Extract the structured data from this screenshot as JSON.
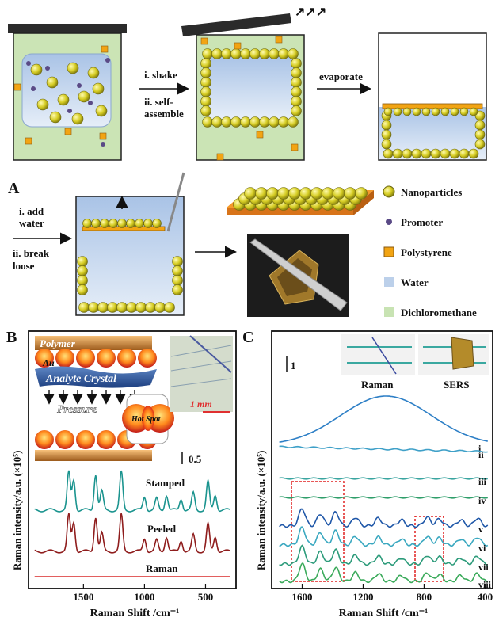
{
  "top": {
    "arrow1_line1": "i. shake",
    "arrow1_line2": "ii. self-",
    "arrow1_line3": "assemble",
    "arrow2": "evaporate"
  },
  "panelA": {
    "label": "A",
    "arrow_line1": "i. add",
    "arrow_line2": "water",
    "arrow_line3": "ii. break",
    "arrow_line4": "loose"
  },
  "legend": [
    {
      "label": "Nanoparticles",
      "color": "#d8d12a"
    },
    {
      "label": "Promoter",
      "color": "#5a4a86"
    },
    {
      "label": "Polystyrene",
      "color": "#f2a413"
    },
    {
      "label": "Water",
      "color": "#bcd0ea"
    },
    {
      "label": "Dichloromethane",
      "color": "#c8e3b3"
    }
  ],
  "panelB": {
    "label": "B",
    "polymer": "Polymer",
    "au": "Au",
    "analyte": "Analyte Crystal",
    "pressure": "Pressure",
    "hotspot": "Hot Spot",
    "scale_text": "1 mm",
    "scalebar": "0.5"
  },
  "panelC": {
    "label": "C",
    "scalebar": "1",
    "inset1": "Raman",
    "inset2": "SERS"
  },
  "chart_data": [
    {
      "type": "line",
      "ylabel": "Raman intensity/a.u. (×10⁵)",
      "xlabel": "Raman Shift /cm⁻¹",
      "xlim": [
        1950,
        250
      ],
      "x_ticks": [
        "1500",
        "1000",
        "500"
      ],
      "series": [
        {
          "name": "Stamped",
          "color": "#1b948f"
        },
        {
          "name": "Peeled",
          "color": "#8f1d1d"
        },
        {
          "name": "Raman",
          "color": "#d92a2a"
        }
      ]
    },
    {
      "type": "line",
      "ylabel": "Raman intensity/a.u. (×10⁵)",
      "xlabel": "Raman Shift /cm⁻¹",
      "xlim": [
        1800,
        350
      ],
      "x_ticks": [
        "1600",
        "1200",
        "800",
        "400"
      ],
      "series": [
        {
          "name": "i",
          "color": "#2d7fc6"
        },
        {
          "name": "ii",
          "color": "#3fa0c8"
        },
        {
          "name": "iii",
          "color": "#3aa5a0"
        },
        {
          "name": "iv",
          "color": "#2f9e6a"
        },
        {
          "name": "v",
          "color": "#1f57a8"
        },
        {
          "name": "vi",
          "color": "#3aa8c0"
        },
        {
          "name": "vii",
          "color": "#2c9b7a"
        },
        {
          "name": "viii",
          "color": "#3aaa5a"
        }
      ]
    }
  ]
}
